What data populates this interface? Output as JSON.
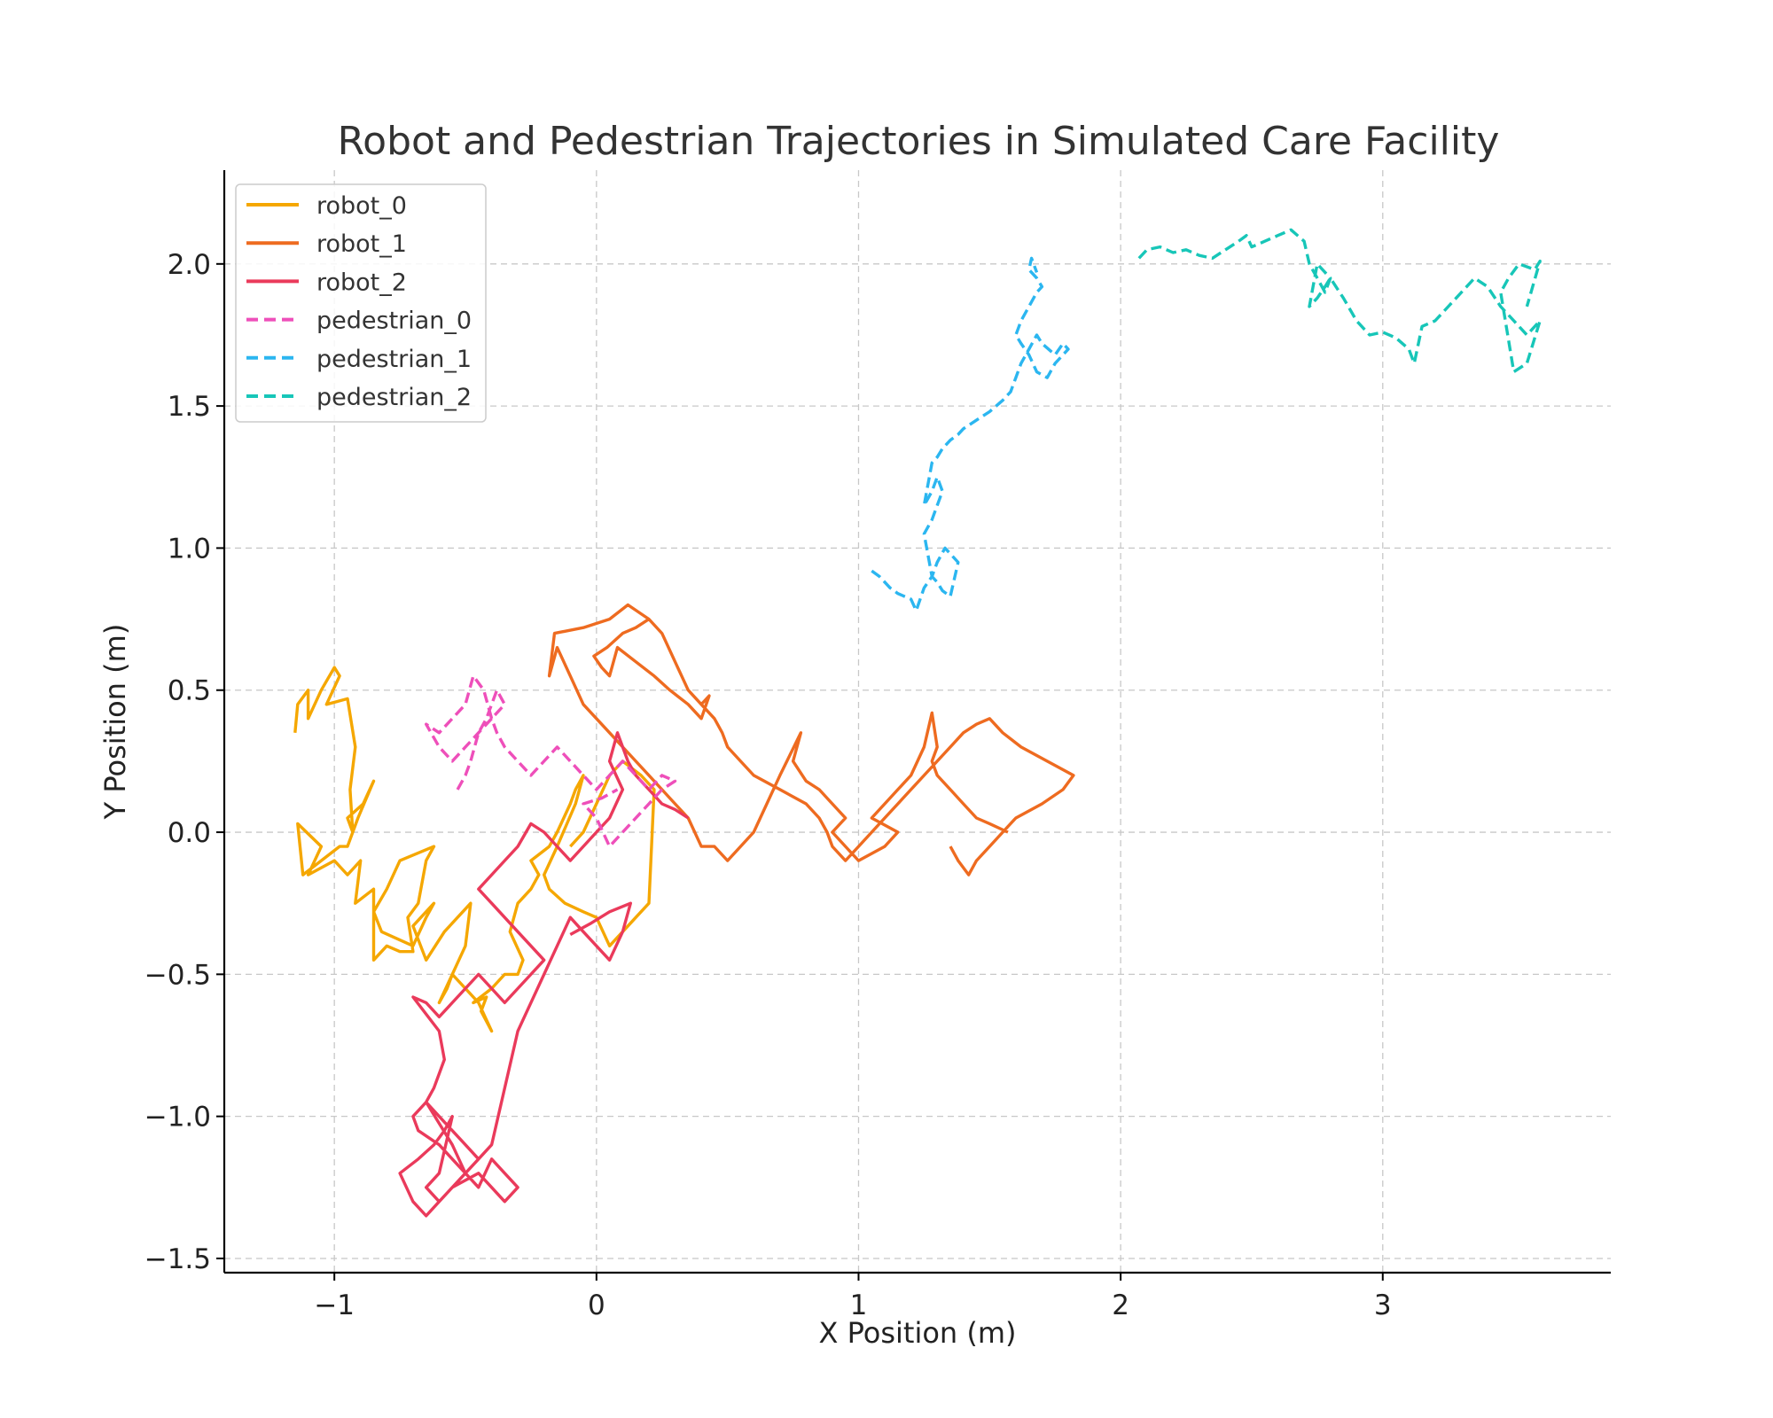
{
  "chart_data": {
    "type": "line",
    "title": "Robot and Pedestrian Trajectories in Simulated Care Facility",
    "xlabel": "X Position (m)",
    "ylabel": "Y Position (m)",
    "xlim": [
      -1.42,
      3.87
    ],
    "ylim": [
      -1.55,
      2.33
    ],
    "xticks": [
      -1,
      0,
      1,
      2,
      3
    ],
    "xtick_labels": [
      "−1",
      "0",
      "1",
      "2",
      "3"
    ],
    "yticks": [
      -1.5,
      -1.0,
      -0.5,
      0.0,
      0.5,
      1.0,
      1.5,
      2.0
    ],
    "ytick_labels": [
      "−1.5",
      "−1.0",
      "−0.5",
      "0.0",
      "0.5",
      "1.0",
      "1.5",
      "2.0"
    ],
    "grid": true,
    "legend_position": "top-left",
    "series": [
      {
        "name": "robot_0",
        "color": "#f5a700",
        "style": "solid",
        "x": [
          -1.15,
          -1.14,
          -1.1,
          -1.1,
          -1.05,
          -1.0,
          -0.98,
          -1.03,
          -0.95,
          -0.92,
          -0.94,
          -0.93,
          -0.95,
          -0.89,
          -0.85,
          -0.91,
          -0.95,
          -0.98,
          -1.05,
          -1.12,
          -1.14,
          -1.05,
          -1.1,
          -1.0,
          -0.95,
          -0.9,
          -0.92,
          -0.85,
          -0.85,
          -0.8,
          -0.75,
          -0.7,
          -0.72,
          -0.68,
          -0.65,
          -0.62,
          -0.75,
          -0.8,
          -0.85,
          -0.82,
          -0.7,
          -0.65,
          -0.62,
          -0.7,
          -0.65,
          -0.58,
          -0.48,
          -0.5,
          -0.55,
          -0.6,
          -0.57,
          -0.55,
          -0.45,
          -0.4,
          -0.44,
          -0.42,
          -0.47,
          -0.4,
          -0.35,
          -0.3,
          -0.28,
          -0.33,
          -0.3,
          -0.25,
          -0.22,
          -0.25,
          -0.18,
          -0.15,
          -0.1,
          -0.08,
          -0.05,
          -0.08,
          -0.15,
          -0.2,
          -0.18,
          -0.12,
          -0.05,
          0.0,
          0.05,
          0.1,
          0.15,
          0.2,
          0.22,
          0.17,
          0.1,
          0.05,
          0.0,
          -0.05,
          -0.1
        ],
        "y": [
          0.35,
          0.45,
          0.5,
          0.4,
          0.5,
          0.58,
          0.55,
          0.45,
          0.47,
          0.3,
          0.15,
          0.0,
          0.05,
          0.1,
          0.18,
          0.05,
          -0.05,
          -0.05,
          -0.1,
          -0.15,
          0.03,
          -0.05,
          -0.15,
          -0.1,
          -0.15,
          -0.1,
          -0.25,
          -0.2,
          -0.45,
          -0.4,
          -0.42,
          -0.42,
          -0.3,
          -0.25,
          -0.1,
          -0.05,
          -0.1,
          -0.2,
          -0.28,
          -0.35,
          -0.4,
          -0.3,
          -0.25,
          -0.33,
          -0.45,
          -0.35,
          -0.25,
          -0.4,
          -0.5,
          -0.6,
          -0.55,
          -0.5,
          -0.6,
          -0.7,
          -0.63,
          -0.58,
          -0.6,
          -0.55,
          -0.5,
          -0.5,
          -0.45,
          -0.35,
          -0.25,
          -0.2,
          -0.15,
          -0.1,
          -0.05,
          0.0,
          0.1,
          0.15,
          0.2,
          0.1,
          -0.05,
          -0.15,
          -0.2,
          -0.25,
          -0.28,
          -0.3,
          -0.4,
          -0.35,
          -0.3,
          -0.25,
          0.15,
          0.2,
          0.25,
          0.2,
          0.1,
          0.0,
          -0.05
        ]
      },
      {
        "name": "robot_1",
        "color": "#ee6b20",
        "style": "solid",
        "x": [
          1.57,
          1.5,
          1.45,
          1.4,
          1.35,
          1.3,
          1.28,
          1.3,
          1.28,
          1.25,
          1.2,
          1.15,
          1.1,
          1.05,
          1.15,
          1.1,
          1.0,
          0.95,
          0.9,
          0.95,
          0.9,
          0.85,
          0.8,
          0.75,
          0.78,
          0.7,
          0.65,
          0.6,
          0.55,
          0.5,
          0.45,
          0.4,
          0.35,
          0.3,
          0.25,
          0.2,
          0.15,
          0.1,
          0.05,
          0.0,
          -0.05,
          -0.1,
          -0.15,
          -0.18,
          -0.16,
          -0.05,
          0.05,
          0.12,
          0.2,
          0.25,
          0.3,
          0.35,
          0.4,
          0.43,
          0.4,
          0.35,
          0.28,
          0.22,
          0.15,
          0.08,
          0.05,
          0.02,
          -0.01,
          0.04,
          0.1,
          0.15,
          0.2,
          0.25,
          0.3,
          0.35,
          0.4,
          0.45,
          0.48,
          0.5,
          0.55,
          0.6,
          0.7,
          0.8,
          0.85,
          0.88,
          0.9,
          0.95,
          1.0,
          1.05,
          1.1,
          1.15,
          1.2,
          1.25,
          1.3,
          1.35,
          1.4,
          1.45,
          1.5,
          1.55,
          1.62,
          1.72,
          1.82,
          1.78,
          1.7,
          1.6,
          1.55,
          1.5,
          1.45,
          1.42,
          1.38,
          1.35
        ],
        "y": [
          0.0,
          0.03,
          0.05,
          0.1,
          0.15,
          0.2,
          0.25,
          0.3,
          0.42,
          0.3,
          0.2,
          0.15,
          0.1,
          0.05,
          0.0,
          -0.05,
          -0.1,
          -0.05,
          0.0,
          0.05,
          0.1,
          0.15,
          0.18,
          0.25,
          0.35,
          0.2,
          0.1,
          0.0,
          -0.05,
          -0.1,
          -0.05,
          -0.05,
          0.05,
          0.1,
          0.15,
          0.2,
          0.25,
          0.3,
          0.35,
          0.4,
          0.45,
          0.55,
          0.65,
          0.55,
          0.7,
          0.72,
          0.75,
          0.8,
          0.75,
          0.7,
          0.6,
          0.5,
          0.45,
          0.48,
          0.4,
          0.45,
          0.5,
          0.55,
          0.6,
          0.65,
          0.55,
          0.58,
          0.62,
          0.65,
          0.7,
          0.72,
          0.75,
          0.7,
          0.6,
          0.5,
          0.45,
          0.4,
          0.35,
          0.3,
          0.25,
          0.2,
          0.15,
          0.1,
          0.05,
          0.0,
          -0.05,
          -0.1,
          -0.05,
          0.0,
          0.05,
          0.1,
          0.15,
          0.2,
          0.25,
          0.3,
          0.35,
          0.38,
          0.4,
          0.35,
          0.3,
          0.25,
          0.2,
          0.15,
          0.1,
          0.05,
          0.0,
          -0.05,
          -0.1,
          -0.15,
          -0.1,
          -0.05
        ]
      },
      {
        "name": "robot_2",
        "color": "#ea3a5b",
        "style": "solid",
        "x": [
          0.35,
          0.3,
          0.25,
          0.2,
          0.15,
          0.12,
          0.1,
          0.08,
          0.05,
          0.1,
          0.05,
          0.0,
          -0.05,
          -0.1,
          -0.15,
          -0.2,
          -0.25,
          -0.3,
          -0.35,
          -0.4,
          -0.45,
          -0.4,
          -0.35,
          -0.3,
          -0.25,
          -0.2,
          -0.25,
          -0.3,
          -0.35,
          -0.4,
          -0.45,
          -0.5,
          -0.55,
          -0.6,
          -0.65,
          -0.7,
          -0.6,
          -0.58,
          -0.62,
          -0.65,
          -0.7,
          -0.68,
          -0.6,
          -0.55,
          -0.5,
          -0.45,
          -0.5,
          -0.55,
          -0.6,
          -0.65,
          -0.55,
          -0.5,
          -0.45,
          -0.4,
          -0.35,
          -0.3,
          -0.35,
          -0.4,
          -0.45,
          -0.55,
          -0.6,
          -0.65,
          -0.7,
          -0.75,
          -0.68,
          -0.62,
          -0.58,
          -0.55,
          -0.6,
          -0.65,
          -0.6,
          -0.55,
          -0.5,
          -0.45,
          -0.4,
          -0.3,
          -0.25,
          -0.2,
          -0.15,
          -0.1,
          -0.05,
          0.0,
          0.05,
          0.1,
          0.13,
          0.05,
          -0.02,
          -0.1
        ],
        "y": [
          0.05,
          0.08,
          0.1,
          0.15,
          0.2,
          0.25,
          0.3,
          0.35,
          0.25,
          0.15,
          0.05,
          0.0,
          -0.05,
          -0.1,
          -0.05,
          0.0,
          0.03,
          -0.05,
          -0.1,
          -0.15,
          -0.2,
          -0.25,
          -0.3,
          -0.35,
          -0.4,
          -0.45,
          -0.5,
          -0.55,
          -0.6,
          -0.55,
          -0.5,
          -0.55,
          -0.6,
          -0.65,
          -0.6,
          -0.58,
          -0.7,
          -0.8,
          -0.9,
          -0.95,
          -1.0,
          -1.05,
          -1.1,
          -1.15,
          -1.2,
          -1.15,
          -1.1,
          -1.05,
          -1.0,
          -0.95,
          -1.1,
          -1.2,
          -1.25,
          -1.15,
          -1.2,
          -1.25,
          -1.3,
          -1.25,
          -1.2,
          -1.25,
          -1.3,
          -1.35,
          -1.3,
          -1.2,
          -1.15,
          -1.1,
          -1.05,
          -1.0,
          -1.2,
          -1.25,
          -1.3,
          -1.25,
          -1.2,
          -1.15,
          -1.1,
          -0.7,
          -0.6,
          -0.5,
          -0.4,
          -0.3,
          -0.35,
          -0.4,
          -0.45,
          -0.35,
          -0.25,
          -0.28,
          -0.32,
          -0.36
        ]
      },
      {
        "name": "pedestrian_0",
        "color": "#ee4fba",
        "style": "dashed",
        "x": [
          -0.53,
          -0.5,
          -0.48,
          -0.45,
          -0.42,
          -0.4,
          -0.38,
          -0.35,
          -0.4,
          -0.43,
          -0.47,
          -0.5,
          -0.55,
          -0.6,
          -0.65,
          -0.6,
          -0.55,
          -0.5,
          -0.45,
          -0.4,
          -0.38,
          -0.35,
          -0.3,
          -0.25,
          -0.2,
          -0.15,
          -0.1,
          -0.05,
          0.0,
          0.05,
          0.1,
          0.15,
          0.2,
          0.25,
          0.3,
          0.25,
          0.2,
          0.15,
          0.1,
          0.05,
          0.0,
          -0.05,
          0.02,
          0.08
        ],
        "y": [
          0.15,
          0.2,
          0.25,
          0.35,
          0.4,
          0.45,
          0.5,
          0.45,
          0.4,
          0.5,
          0.55,
          0.45,
          0.4,
          0.35,
          0.38,
          0.3,
          0.25,
          0.3,
          0.35,
          0.4,
          0.35,
          0.3,
          0.25,
          0.2,
          0.25,
          0.3,
          0.25,
          0.2,
          0.15,
          0.2,
          0.25,
          0.2,
          0.15,
          0.2,
          0.18,
          0.15,
          0.1,
          0.05,
          0.0,
          -0.05,
          0.05,
          0.1,
          0.12,
          0.15
        ]
      },
      {
        "name": "pedestrian_1",
        "color": "#2bb6f0",
        "style": "dashed",
        "x": [
          1.05,
          1.08,
          1.12,
          1.15,
          1.2,
          1.22,
          1.25,
          1.28,
          1.3,
          1.32,
          1.35,
          1.38,
          1.33,
          1.3,
          1.28,
          1.25,
          1.28,
          1.3,
          1.32,
          1.3,
          1.28,
          1.25,
          1.28,
          1.3,
          1.32,
          1.35,
          1.38,
          1.4,
          1.45,
          1.5,
          1.55,
          1.58,
          1.6,
          1.62,
          1.65,
          1.68,
          1.7,
          1.75,
          1.78,
          1.8,
          1.75,
          1.72,
          1.68,
          1.65,
          1.62,
          1.6,
          1.62,
          1.65,
          1.68,
          1.7,
          1.68,
          1.65,
          1.66,
          1.68
        ],
        "y": [
          0.92,
          0.9,
          0.86,
          0.84,
          0.82,
          0.78,
          0.86,
          0.9,
          0.88,
          0.85,
          0.83,
          0.95,
          1.0,
          0.95,
          0.9,
          1.05,
          1.1,
          1.15,
          1.2,
          1.25,
          1.2,
          1.15,
          1.3,
          1.32,
          1.35,
          1.38,
          1.4,
          1.42,
          1.45,
          1.48,
          1.52,
          1.55,
          1.6,
          1.65,
          1.7,
          1.75,
          1.72,
          1.68,
          1.72,
          1.7,
          1.65,
          1.6,
          1.62,
          1.68,
          1.72,
          1.75,
          1.8,
          1.85,
          1.9,
          1.92,
          1.95,
          1.98,
          2.02,
          1.97
        ]
      },
      {
        "name": "pedestrian_2",
        "color": "#17c6b8",
        "style": "dashed",
        "x": [
          2.07,
          2.1,
          2.15,
          2.2,
          2.25,
          2.3,
          2.35,
          2.4,
          2.45,
          2.48,
          2.5,
          2.55,
          2.6,
          2.65,
          2.7,
          2.72,
          2.75,
          2.78,
          2.8,
          2.75,
          2.72,
          2.75,
          2.78,
          2.8,
          2.85,
          2.9,
          2.95,
          3.0,
          3.05,
          3.1,
          3.12,
          3.15,
          3.2,
          3.25,
          3.3,
          3.35,
          3.4,
          3.45,
          3.5,
          3.55,
          3.6,
          3.55,
          3.5,
          3.45,
          3.48,
          3.52,
          3.58,
          3.6,
          3.55
        ],
        "y": [
          2.02,
          2.05,
          2.06,
          2.04,
          2.05,
          2.03,
          2.02,
          2.05,
          2.08,
          2.1,
          2.06,
          2.08,
          2.1,
          2.12,
          2.08,
          2.0,
          1.95,
          1.9,
          1.95,
          2.0,
          1.85,
          1.88,
          1.92,
          1.95,
          1.88,
          1.8,
          1.75,
          1.76,
          1.74,
          1.7,
          1.65,
          1.78,
          1.8,
          1.85,
          1.9,
          1.95,
          1.92,
          1.85,
          1.8,
          1.75,
          1.8,
          1.65,
          1.62,
          1.9,
          1.95,
          2.0,
          1.98,
          2.01,
          1.85
        ]
      }
    ]
  }
}
